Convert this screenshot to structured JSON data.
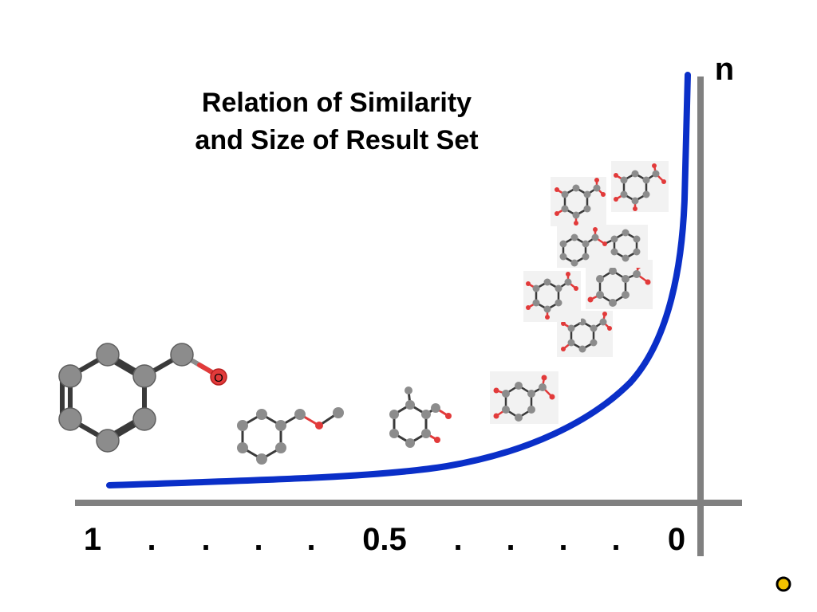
{
  "title_line1": "Relation of Similarity",
  "title_line2": "and Size of Result Set",
  "y_axis_label": "n",
  "x_ticks": [
    "1",
    ".",
    ".",
    ".",
    ".",
    "0.5",
    ".",
    ".",
    ".",
    ".",
    "0"
  ],
  "atom_label": "O",
  "colors": {
    "curve": "#0a2fc8",
    "axis": "#808080",
    "atom_carbon": "#8c8c8c",
    "atom_oxygen": "#e23a3a",
    "bond": "#3a3a3a",
    "corner_dot": "#f2c200"
  },
  "molecules": [
    {
      "name": "benzyl-alcohol-large-molecule",
      "icon": "benzyl-alcohol-icon"
    },
    {
      "name": "benzyl-methyl-ether-molecule",
      "icon": "ether-icon"
    },
    {
      "name": "hydroxymethyl-cresol-molecule",
      "icon": "cresol-icon"
    },
    {
      "name": "dihydroxy-benzoic-molecule",
      "icon": "benzoic-icon"
    },
    {
      "name": "trisubstituted-benzoic-molecule",
      "icon": "benzoic-icon"
    },
    {
      "name": "nitro-phenol-molecule",
      "icon": "nitro-icon"
    },
    {
      "name": "trihydroxy-benzoic-molecule",
      "icon": "benzoic-icon"
    },
    {
      "name": "benzyl-benzoate-molecule",
      "icon": "ester-icon"
    },
    {
      "name": "gallic-acid-molecule",
      "icon": "benzoic-icon"
    },
    {
      "name": "resorcinol-acid-molecule",
      "icon": "benzoic-icon"
    }
  ]
}
